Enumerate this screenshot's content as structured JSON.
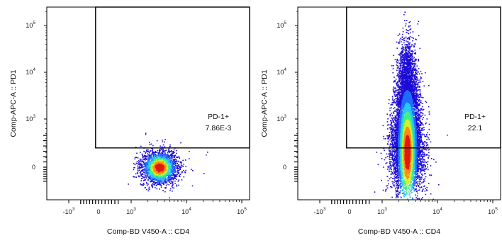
{
  "chart_data": [
    {
      "type": "scatter",
      "panel": "left",
      "xlabel": "Comp-BD V450-A :: CD4",
      "ylabel": "Comp-APC-A :: PD1",
      "scale": "biexponential",
      "x_ticks": [
        {
          "value": -1000,
          "base": "-10",
          "exp": "3"
        },
        {
          "value": 0,
          "base": "0",
          "exp": ""
        },
        {
          "value": 1000,
          "base": "10",
          "exp": "3"
        },
        {
          "value": 10000,
          "base": "10",
          "exp": "4"
        },
        {
          "value": 100000,
          "base": "10",
          "exp": "5"
        }
      ],
      "y_ticks": [
        {
          "value": 0,
          "base": "0",
          "exp": ""
        },
        {
          "value": 1000,
          "base": "10",
          "exp": "3"
        },
        {
          "value": 10000,
          "base": "10",
          "exp": "4"
        },
        {
          "value": 100000,
          "base": "10",
          "exp": "5"
        }
      ],
      "gate": {
        "name": "PD-1+",
        "value": "7.86E-3",
        "x_min": -100,
        "y_min": 400
      },
      "population": {
        "x_center": 3200,
        "y_center": 0,
        "description": "PD1-negative cluster"
      }
    },
    {
      "type": "scatter",
      "panel": "right",
      "xlabel": "Comp-BD V450-A :: CD4",
      "ylabel": "Comp-APC-A :: PD1",
      "scale": "biexponential",
      "x_ticks": [
        {
          "value": -1000,
          "base": "-10",
          "exp": "3"
        },
        {
          "value": 0,
          "base": "0",
          "exp": ""
        },
        {
          "value": 1000,
          "base": "10",
          "exp": "3"
        },
        {
          "value": 10000,
          "base": "10",
          "exp": "4"
        },
        {
          "value": 100000,
          "base": "10",
          "exp": "5"
        }
      ],
      "y_ticks": [
        {
          "value": 0,
          "base": "0",
          "exp": ""
        },
        {
          "value": 1000,
          "base": "10",
          "exp": "3"
        },
        {
          "value": 10000,
          "base": "10",
          "exp": "4"
        },
        {
          "value": 100000,
          "base": "10",
          "exp": "5"
        }
      ],
      "gate": {
        "name": "PD-1+",
        "value": "22.1",
        "x_min": -100,
        "y_min": 400
      },
      "population": {
        "x_center": 2800,
        "y_center": 200,
        "description": "vertical streak extending into PD1+ region"
      }
    }
  ],
  "colors": {
    "density": [
      "#1d0bd6",
      "#1f6cff",
      "#27c6f2",
      "#3ef088",
      "#d4f02a",
      "#ff8a14",
      "#e01a0f"
    ],
    "axis": "#000000",
    "gate": "#000000"
  }
}
